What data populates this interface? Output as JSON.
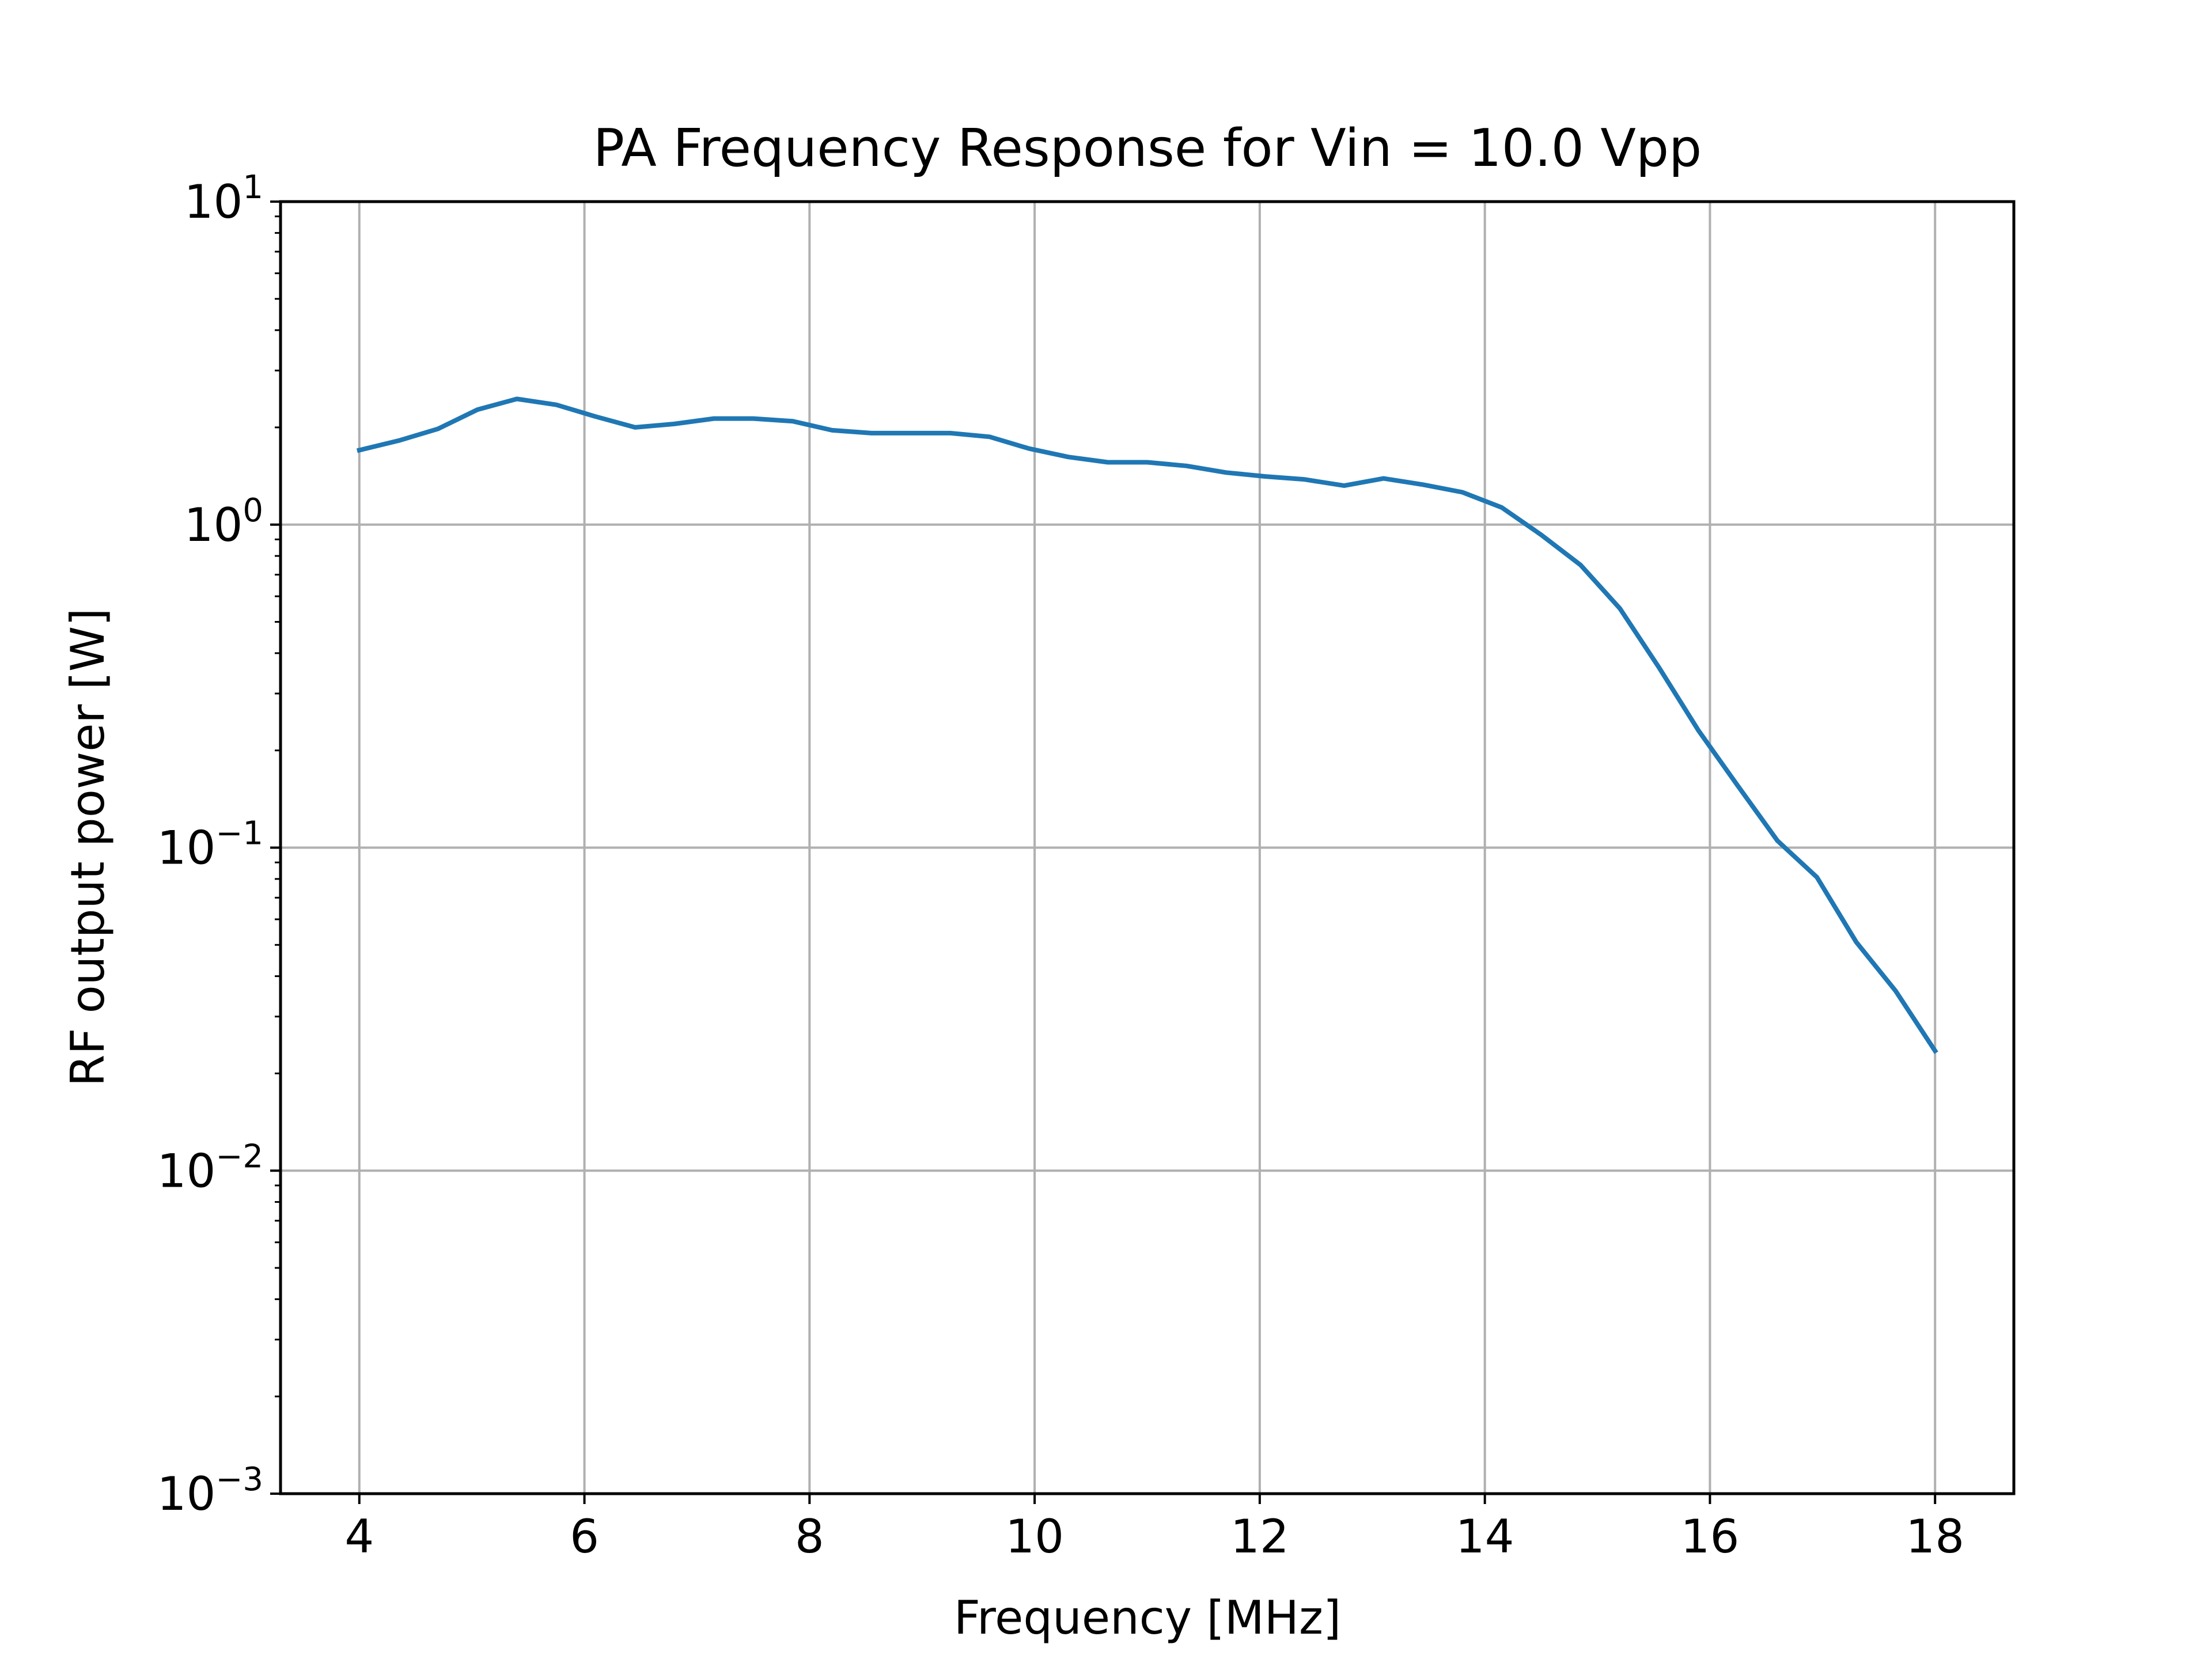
{
  "chart_data": {
    "type": "line",
    "title": "PA Frequency Response for Vin = 10.0 Vpp",
    "xlabel": "Frequency [MHz]",
    "ylabel": "RF output power [W]",
    "xlim": [
      3.3,
      18.7
    ],
    "ylim": [
      0.001,
      10
    ],
    "yscale": "log",
    "grid": true,
    "x_ticks": [
      {
        "value": 4,
        "label": "4"
      },
      {
        "value": 6,
        "label": "6"
      },
      {
        "value": 8,
        "label": "8"
      },
      {
        "value": 10,
        "label": "10"
      },
      {
        "value": 12,
        "label": "12"
      },
      {
        "value": 14,
        "label": "14"
      },
      {
        "value": 16,
        "label": "16"
      },
      {
        "value": 18,
        "label": "18"
      }
    ],
    "y_ticks": [
      {
        "value": 10,
        "base": "10",
        "exp": "1"
      },
      {
        "value": 1,
        "base": "10",
        "exp": "0"
      },
      {
        "value": 0.1,
        "base": "10",
        "exp": "−1"
      },
      {
        "value": 0.01,
        "base": "10",
        "exp": "−2"
      },
      {
        "value": 0.001,
        "base": "10",
        "exp": "−3"
      }
    ],
    "series": [
      {
        "color": "#1f77b4",
        "x": [
          4.0,
          4.35,
          4.7,
          5.05,
          5.4,
          5.75,
          6.1,
          6.45,
          6.8,
          7.15,
          7.5,
          7.85,
          8.2,
          8.55,
          8.9,
          9.25,
          9.6,
          9.95,
          10.3,
          10.65,
          11.0,
          11.35,
          11.7,
          12.05,
          12.4,
          12.75,
          13.1,
          13.45,
          13.8,
          14.15,
          14.5,
          14.85,
          15.2,
          15.55,
          15.9,
          16.25,
          16.6,
          16.95,
          17.3,
          17.65,
          18.0
        ],
        "y": [
          1.7,
          1.82,
          1.98,
          2.27,
          2.45,
          2.35,
          2.16,
          2.0,
          2.05,
          2.13,
          2.13,
          2.09,
          1.96,
          1.92,
          1.92,
          1.92,
          1.87,
          1.72,
          1.62,
          1.56,
          1.56,
          1.52,
          1.45,
          1.41,
          1.38,
          1.32,
          1.39,
          1.33,
          1.26,
          1.13,
          0.93,
          0.75,
          0.55,
          0.36,
          0.23,
          0.155,
          0.105,
          0.081,
          0.051,
          0.036,
          0.0235
        ]
      }
    ]
  }
}
